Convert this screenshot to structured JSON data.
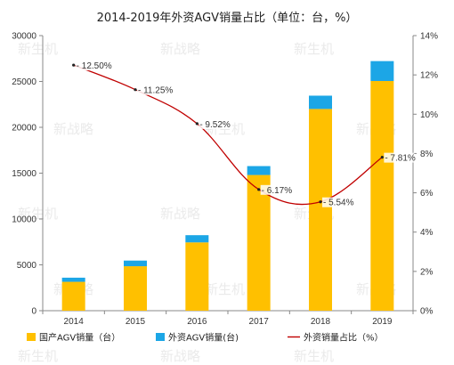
{
  "chart_data": {
    "type": "bar",
    "title": "2014-2019年外资AGV销量占比（单位：台，%）",
    "categories": [
      "2014",
      "2015",
      "2016",
      "2017",
      "2018",
      "2019"
    ],
    "series": [
      {
        "name": "国产AGV销量（台）",
        "kind": "bar-stacked",
        "axis": "left",
        "color": "#FFC000",
        "values": [
          3150,
          4850,
          7450,
          14800,
          22000,
          25050
        ]
      },
      {
        "name": "外资AGV销量(台)",
        "kind": "bar-stacked",
        "axis": "left",
        "color": "#1CA6E6",
        "values": [
          450,
          615,
          785,
          970,
          1450,
          2170
        ]
      },
      {
        "name": "外资销量占比（%）",
        "kind": "line",
        "axis": "right",
        "color": "#C00000",
        "values": [
          12.5,
          11.25,
          9.52,
          6.17,
          5.54,
          7.81
        ],
        "labels": [
          "12.50%",
          "11.25%",
          "9.52%",
          "6.17%",
          "5.54%",
          "7.81%"
        ]
      }
    ],
    "y_left": {
      "ylim": [
        0,
        30000
      ],
      "ticks": [
        "0",
        "5000",
        "10000",
        "15000",
        "20000",
        "25000",
        "30000"
      ]
    },
    "y_right": {
      "ylim": [
        0,
        14
      ],
      "ticks": [
        "0%",
        "2%",
        "4%",
        "6%",
        "8%",
        "10%",
        "12%",
        "14%"
      ]
    },
    "legend_position": "bottom",
    "grid": false
  },
  "watermark": {
    "brand": "新战略",
    "text": "新生机"
  }
}
